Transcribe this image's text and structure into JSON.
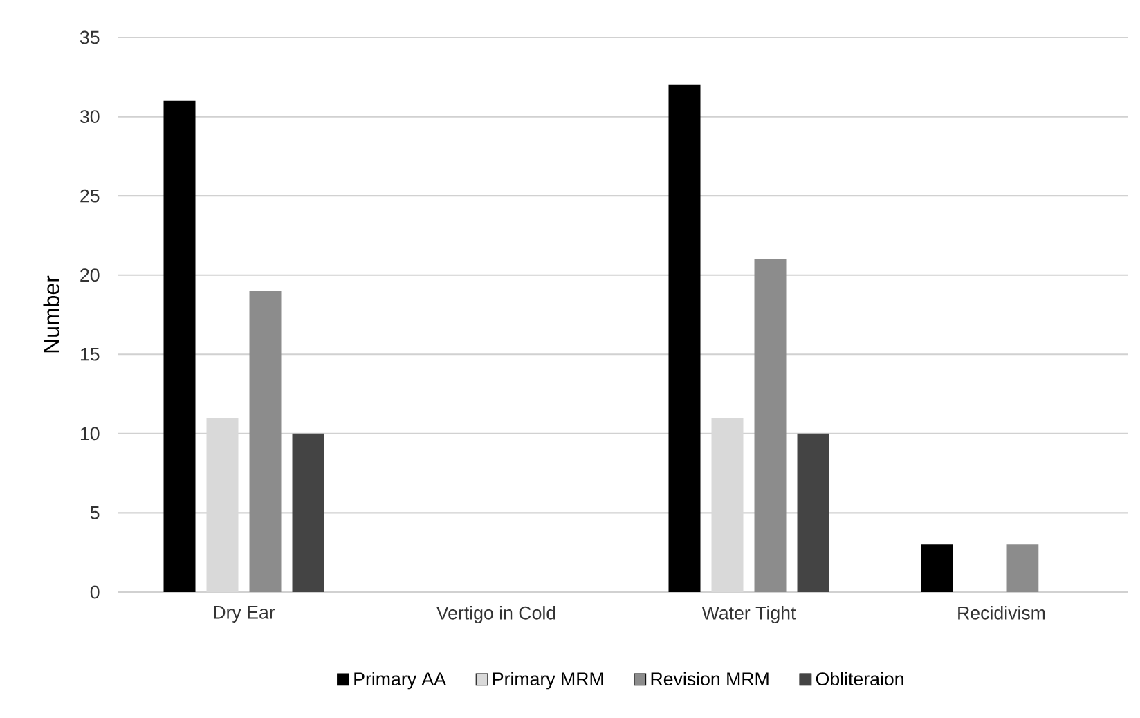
{
  "chart_data": {
    "type": "bar",
    "ylabel": "Number",
    "categories": [
      "Dry Ear",
      "Vertigo in Cold",
      "Water Tight",
      "Recidivism"
    ],
    "series": [
      {
        "name": "Primary AA",
        "color": "#000000",
        "values": [
          31,
          0,
          32,
          3
        ]
      },
      {
        "name": "Primary MRM",
        "color": "#d9d9d9",
        "values": [
          11,
          0,
          11,
          0
        ]
      },
      {
        "name": "Revision MRM",
        "color": "#8c8c8c",
        "values": [
          19,
          0,
          21,
          3
        ]
      },
      {
        "name": "Obliteraion",
        "color": "#444444",
        "values": [
          10,
          0,
          10,
          0
        ]
      }
    ],
    "ylim": [
      0,
      35
    ],
    "yticks": [
      0,
      5,
      10,
      15,
      20,
      25,
      30,
      35
    ],
    "grid": "y",
    "legend": "bottom"
  }
}
